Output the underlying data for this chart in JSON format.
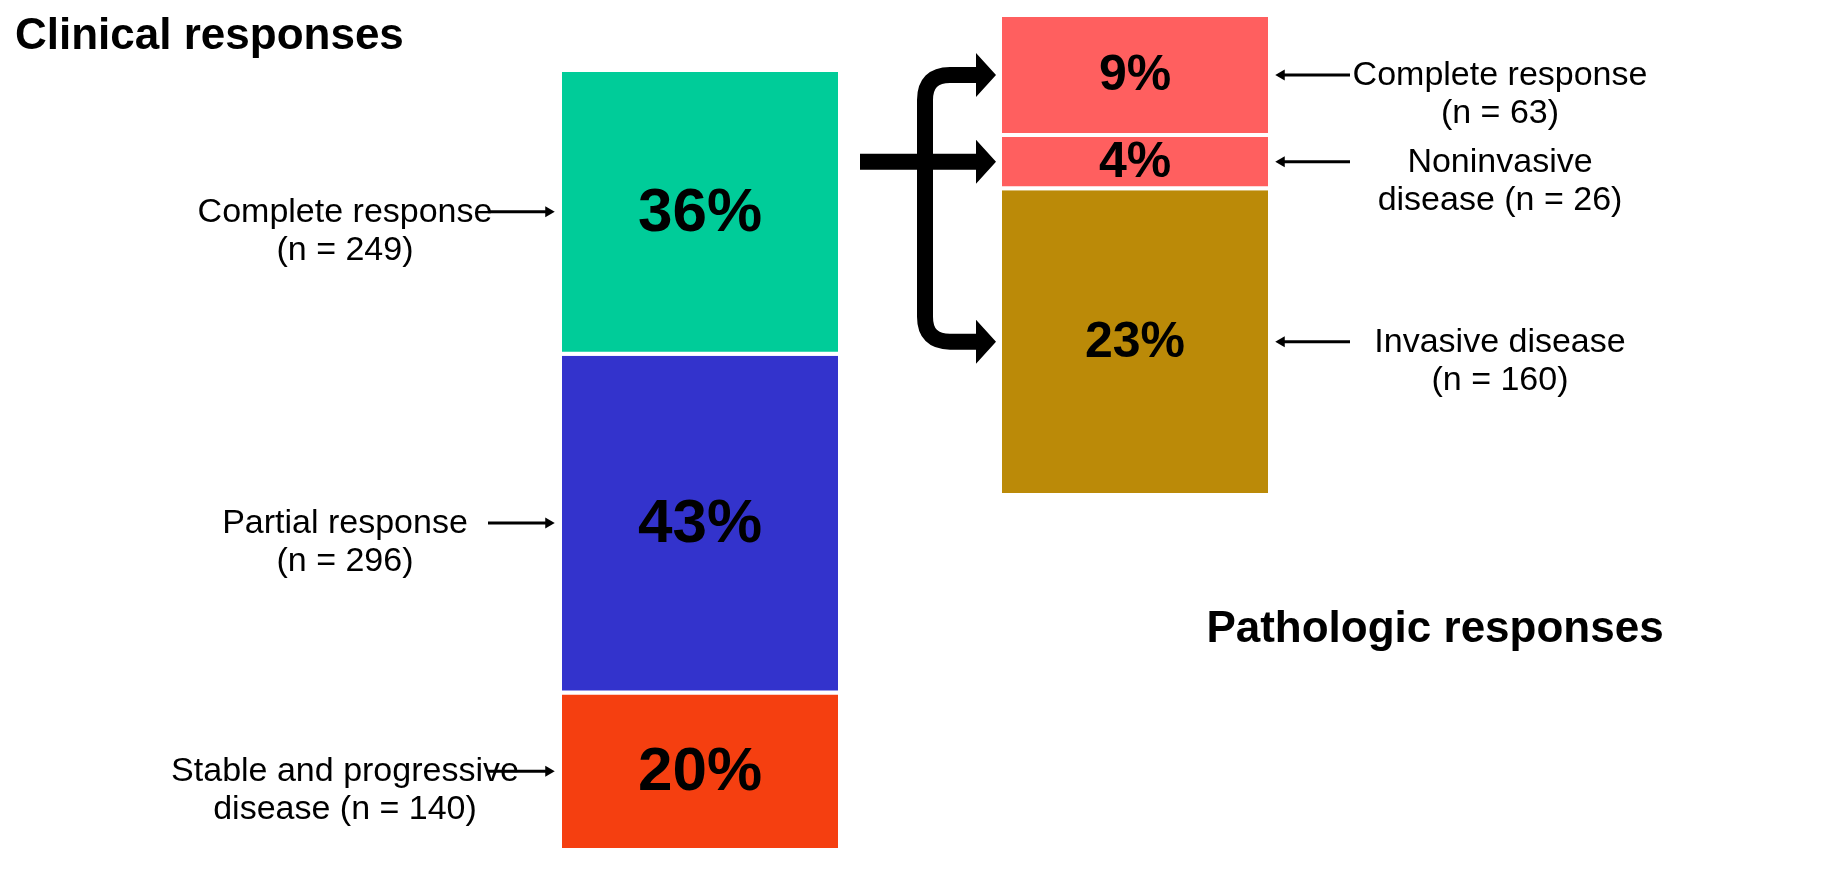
{
  "chart_data": [
    {
      "type": "bar",
      "title": "Clinical responses",
      "stacked": true,
      "tick_labels": false,
      "categories": [
        null
      ],
      "series": [
        {
          "name": "Stable and progressive\ndisease (n = 140)",
          "color": "#f53f10",
          "values": [
            20
          ],
          "value_labels": [
            "20%"
          ]
        },
        {
          "name": "Partial response\n(n = 296)",
          "color": "#3333cc",
          "values": [
            43
          ],
          "value_labels": [
            "43%"
          ]
        },
        {
          "name": "Complete response\n(n = 249)",
          "color": "#00cc99",
          "values": [
            36
          ],
          "value_labels": [
            "36%"
          ]
        }
      ]
    },
    {
      "type": "bar",
      "title": "Pathologic responses",
      "stacked": true,
      "tick_labels": false,
      "categories": [
        null
      ],
      "series": [
        {
          "name": "Invasive disease\n(n = 160)",
          "color": "#bb8a08",
          "values": [
            23
          ],
          "value_labels": [
            "23%"
          ]
        },
        {
          "name": "Noninvasive\ndisease (n = 26)",
          "color": "#ff5f5f",
          "values": [
            4
          ],
          "value_labels": [
            "4%"
          ]
        },
        {
          "name": "Complete response\n(n = 63)",
          "color": "#ff5f5f",
          "values": [
            9
          ],
          "value_labels": [
            "9%"
          ]
        }
      ]
    }
  ]
}
